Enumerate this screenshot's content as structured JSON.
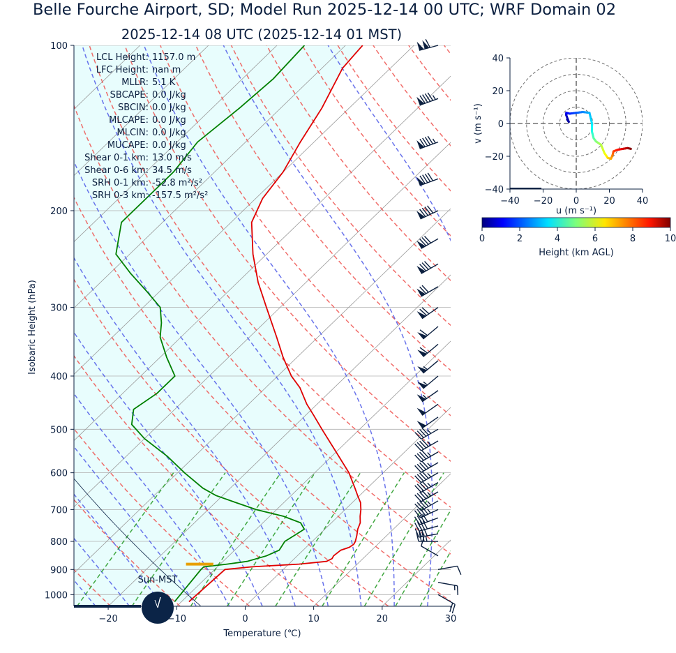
{
  "title": "Belle Fourche Airport, SD; Model Run 2025-12-14 00 UTC; WRF Domain 02",
  "subtitle": "2025-12-14 08 UTC  (2025-12-14 01 MST)",
  "colors": {
    "text": "#0b1f3f",
    "temperature": "#e00000",
    "dewpoint": "#008000",
    "dry_adiabat": "#ef5350",
    "moist_adiabat": "#4f5ae8",
    "mixing_ratio": "#2e9e2e",
    "cape_shade": "#e8fdfd",
    "lcl_marker": "#e8a000",
    "wind_barb": "#0b1f3f"
  },
  "stats": [
    {
      "label": "LCL Height:",
      "value": "1157.0 m"
    },
    {
      "label": "LFC Height:",
      "value": "nan m"
    },
    {
      "label": "MLLR:",
      "value": "5.1 K"
    },
    {
      "label": "SBCAPE:",
      "value": "0.0 J/kg"
    },
    {
      "label": "SBCIN:",
      "value": "0.0 J/kg"
    },
    {
      "label": "MLCAPE:",
      "value": "0.0 J/kg"
    },
    {
      "label": "MLCIN:",
      "value": "0.0 J/kg"
    },
    {
      "label": "MUCAPE:",
      "value": "0.0 J/kg"
    },
    {
      "label": "Shear 0-1 km:",
      "value": "13.0 m/s"
    },
    {
      "label": "Shear 0-6 km:",
      "value": "34.5 m/s"
    },
    {
      "label": "SRH 0-1 km:",
      "value": "-52.8 m²/s²"
    },
    {
      "label": "SRH 0-3 km:",
      "value": "-157.5 m²/s²"
    }
  ],
  "sun_label": "Sun-MST",
  "chart_data": [
    {
      "type": "line",
      "name": "skew-t",
      "xlabel": "Temperature (℃)",
      "ylabel": "Isobaric Height (hPa)",
      "xlim": [
        -25,
        30
      ],
      "ylim": [
        1050,
        100
      ],
      "y_scale": "log",
      "x_ticks": [
        -20,
        -10,
        0,
        10,
        20,
        30
      ],
      "x_tick_labels": [
        "−20",
        "−10",
        "0",
        "10",
        "20",
        "30"
      ],
      "y_ticks": [
        100,
        200,
        300,
        400,
        500,
        600,
        700,
        800,
        900,
        1000
      ],
      "skew": 36,
      "grid": true,
      "temperature": {
        "p": [
          1030,
          900,
          890,
          880,
          870,
          860,
          850,
          830,
          820,
          810,
          800,
          780,
          760,
          740,
          720,
          700,
          680,
          660,
          640,
          600,
          550,
          500,
          470,
          450,
          420,
          400,
          370,
          340,
          300,
          270,
          240,
          210,
          190,
          170,
          150,
          130,
          110,
          100
        ],
        "t": [
          -8.9,
          -8.5,
          -5,
          1.5,
          5.1,
          5.5,
          5.3,
          5.5,
          6.3,
          6.5,
          6.3,
          5.6,
          4.8,
          4.2,
          3.2,
          2.3,
          1.2,
          -0.3,
          -1.8,
          -5,
          -10,
          -15.5,
          -19,
          -21.5,
          -25,
          -28,
          -32,
          -36,
          -42,
          -47,
          -52,
          -57,
          -59,
          -60,
          -62,
          -64,
          -67,
          -67.5
        ]
      },
      "dewpoint": {
        "p": [
          1030,
          900,
          890,
          880,
          870,
          850,
          830,
          800,
          780,
          760,
          740,
          720,
          700,
          680,
          660,
          640,
          600,
          560,
          520,
          490,
          460,
          430,
          400,
          370,
          340,
          320,
          300,
          280,
          260,
          240,
          210,
          190,
          170,
          150,
          130,
          115,
          100
        ],
        "t": [
          -11,
          -12,
          -12,
          -9,
          -6.5,
          -4.5,
          -3.5,
          -4,
          -3.5,
          -3,
          -4.5,
          -8,
          -13,
          -17,
          -21,
          -24,
          -29,
          -34,
          -40,
          -44,
          -46,
          -45,
          -45,
          -49,
          -53,
          -55,
          -57.5,
          -62,
          -67,
          -72,
          -76,
          -76,
          -76,
          -77,
          -76,
          -75.5,
          -76
        ]
      },
      "lcl_pressure": 880,
      "winds": {
        "p": [
          1000,
          950,
          900,
          850,
          800,
          775,
          750,
          725,
          700,
          675,
          650,
          625,
          600,
          575,
          550,
          525,
          500,
          475,
          450,
          425,
          400,
          375,
          350,
          325,
          300,
          275,
          250,
          225,
          200,
          175,
          150,
          125,
          100
        ],
        "speed_kt": [
          20,
          15,
          10,
          10,
          35,
          40,
          40,
          40,
          45,
          45,
          45,
          45,
          45,
          45,
          45,
          45,
          45,
          50,
          50,
          55,
          55,
          55,
          60,
          60,
          70,
          70,
          80,
          80,
          90,
          90,
          95,
          95,
          110
        ],
        "dir_deg": [
          120,
          100,
          80,
          300,
          270,
          260,
          255,
          250,
          245,
          240,
          240,
          240,
          240,
          240,
          240,
          240,
          240,
          235,
          235,
          235,
          230,
          230,
          230,
          230,
          235,
          240,
          240,
          240,
          245,
          250,
          250,
          250,
          255
        ]
      },
      "lines": {
        "dry_adiabat_theta_K": [
          250,
          260,
          270,
          280,
          290,
          300,
          310,
          320,
          330,
          340,
          350,
          360,
          370,
          380,
          390,
          400,
          410,
          420,
          430,
          440,
          450
        ],
        "moist_adiabat_T0_C": [
          -25,
          -20,
          -15,
          -10,
          -5,
          0,
          5,
          10,
          15,
          20,
          25,
          30
        ],
        "mixing_ratio_gkg": [
          0.5,
          1,
          2,
          3,
          5,
          8,
          12,
          16,
          20,
          28
        ],
        "isotherm_spacing_C": 10
      }
    },
    {
      "type": "line",
      "name": "hodograph",
      "xlabel": "u (m s⁻¹)",
      "ylabel": "v (m s⁻¹)",
      "xlim": [
        -40,
        40
      ],
      "ylim": [
        -40,
        40
      ],
      "x_ticks": [
        -40,
        -20,
        0,
        20,
        40
      ],
      "x_tick_labels": [
        "−40",
        "−20",
        "0",
        "20",
        "40"
      ],
      "y_ticks": [
        -40,
        -20,
        0,
        20,
        40
      ],
      "y_tick_labels": [
        "−40",
        "−20",
        "0",
        "20",
        "40"
      ],
      "rings": [
        10,
        20,
        30,
        40
      ],
      "height_km": [
        0,
        0.3,
        0.6,
        1,
        1.5,
        2,
        2.5,
        3,
        3.5,
        4,
        4.5,
        5,
        5.5,
        6,
        6.5,
        7,
        7.5,
        8,
        8.5,
        9,
        9.5,
        10
      ],
      "u": [
        -5.5,
        -4.5,
        -6,
        -6,
        -4,
        0,
        4,
        8,
        9.5,
        9.5,
        10.5,
        12,
        15,
        17,
        19,
        21,
        22,
        22.5,
        25,
        28,
        31,
        33
      ],
      "v": [
        2.5,
        1,
        5,
        6.5,
        6,
        6.5,
        7,
        6.5,
        0,
        -5,
        -9,
        -11,
        -13,
        -18,
        -21,
        -21.5,
        -19,
        -17,
        -16,
        -15.5,
        -15,
        -15.5
      ],
      "surface_motion_u": -40
    },
    {
      "type": "heatmap",
      "name": "colorbar",
      "xlabel": "Height (km AGL)",
      "range": [
        0,
        10
      ],
      "ticks": [
        0,
        2,
        4,
        6,
        8,
        10
      ],
      "colormap": "jet"
    }
  ]
}
